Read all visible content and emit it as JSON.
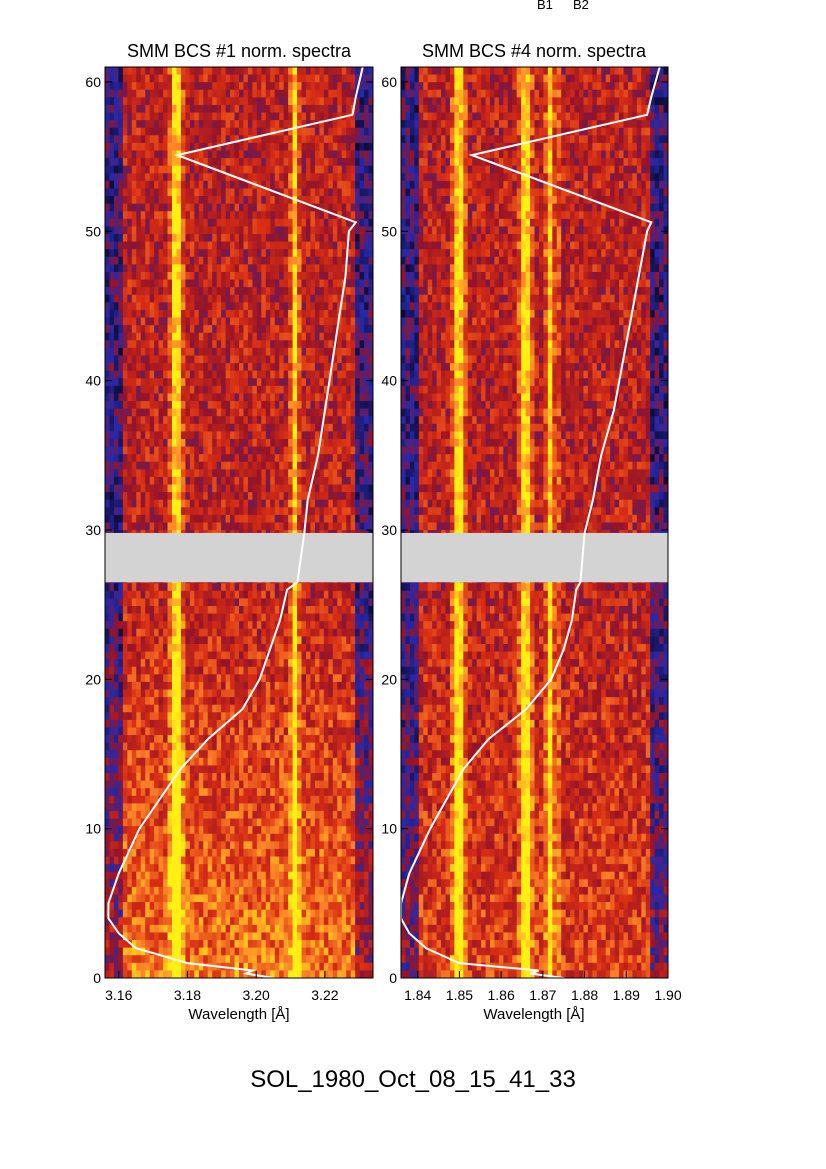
{
  "header_labels": [
    "B1",
    "B2"
  ],
  "event_id": "SOL_1980_Oct_08_15_41_33",
  "colors": {
    "background_low": "#0a0a50",
    "mid": "#c81e14",
    "high": "#ff8c28",
    "peak": "#ffff00",
    "data_gap": "#d3d3d3",
    "lightcurve": "#ffffff"
  },
  "chart_data": [
    {
      "type": "heatmap",
      "title": "SMM BCS #1 norm. spectra",
      "xlabel": "Wavelength [Å]",
      "ylabel": "",
      "xlim": [
        3.156,
        3.234
      ],
      "ylim": [
        0,
        61
      ],
      "xticks": [
        3.16,
        3.18,
        3.2,
        3.22
      ],
      "xtick_labels": [
        "3.16",
        "3.18",
        "3.20",
        "3.22"
      ],
      "yticks": [
        0,
        10,
        20,
        30,
        40,
        50,
        60
      ],
      "ytick_labels": [
        "0",
        "10",
        "20",
        "30",
        "40",
        "50",
        "60"
      ],
      "data_gap": [
        26.5,
        29.8
      ],
      "bright_lines": [
        3.177,
        3.211
      ],
      "lightcurve": {
        "t": [
          0,
          0.3,
          0.5,
          1,
          2,
          3,
          4,
          5,
          7,
          10,
          12,
          14,
          16,
          18,
          20,
          22,
          24,
          26,
          26.5,
          29.8,
          32,
          35,
          38,
          41,
          44,
          47,
          50,
          50.6,
          55.1,
          57.8,
          59,
          60,
          61
        ],
        "x": [
          3.205,
          3.197,
          3.199,
          3.18,
          3.165,
          3.16,
          3.157,
          3.157,
          3.16,
          3.166,
          3.172,
          3.178,
          3.186,
          3.196,
          3.201,
          3.204,
          3.207,
          3.209,
          3.212,
          3.214,
          3.215,
          3.218,
          3.22,
          3.222,
          3.224,
          3.226,
          3.227,
          3.229,
          3.177,
          3.228,
          3.229,
          3.23,
          3.231
        ]
      }
    },
    {
      "type": "heatmap",
      "title": "SMM BCS #4 norm. spectra",
      "xlabel": "Wavelength [Å]",
      "ylabel": "",
      "xlim": [
        1.836,
        1.9
      ],
      "ylim": [
        0,
        61
      ],
      "xticks": [
        1.84,
        1.85,
        1.86,
        1.87,
        1.88,
        1.89,
        1.9
      ],
      "xtick_labels": [
        "1.84",
        "1.85",
        "1.86",
        "1.87",
        "1.88",
        "1.89",
        "1.90"
      ],
      "yticks": [
        0,
        10,
        20,
        30,
        40,
        50,
        60
      ],
      "ytick_labels": [
        "0",
        "10",
        "20",
        "30",
        "40",
        "50",
        "60"
      ],
      "data_gap": [
        26.5,
        29.8
      ],
      "bright_lines": [
        1.85,
        1.866,
        1.872
      ],
      "lightcurve": {
        "t": [
          0,
          0.3,
          0.5,
          1,
          2,
          3,
          4,
          5,
          7,
          10,
          12,
          14,
          16,
          18,
          20,
          22,
          24,
          26,
          26.5,
          29.8,
          32,
          35,
          38,
          41,
          44,
          47,
          50,
          50.6,
          55.1,
          57.8,
          59,
          60,
          61
        ],
        "x": [
          1.875,
          1.867,
          1.869,
          1.85,
          1.842,
          1.838,
          1.836,
          1.836,
          1.838,
          1.843,
          1.847,
          1.851,
          1.857,
          1.866,
          1.872,
          1.875,
          1.877,
          1.878,
          1.879,
          1.88,
          1.882,
          1.884,
          1.887,
          1.889,
          1.891,
          1.893,
          1.895,
          1.896,
          1.853,
          1.895,
          1.896,
          1.897,
          1.898
        ]
      }
    }
  ]
}
